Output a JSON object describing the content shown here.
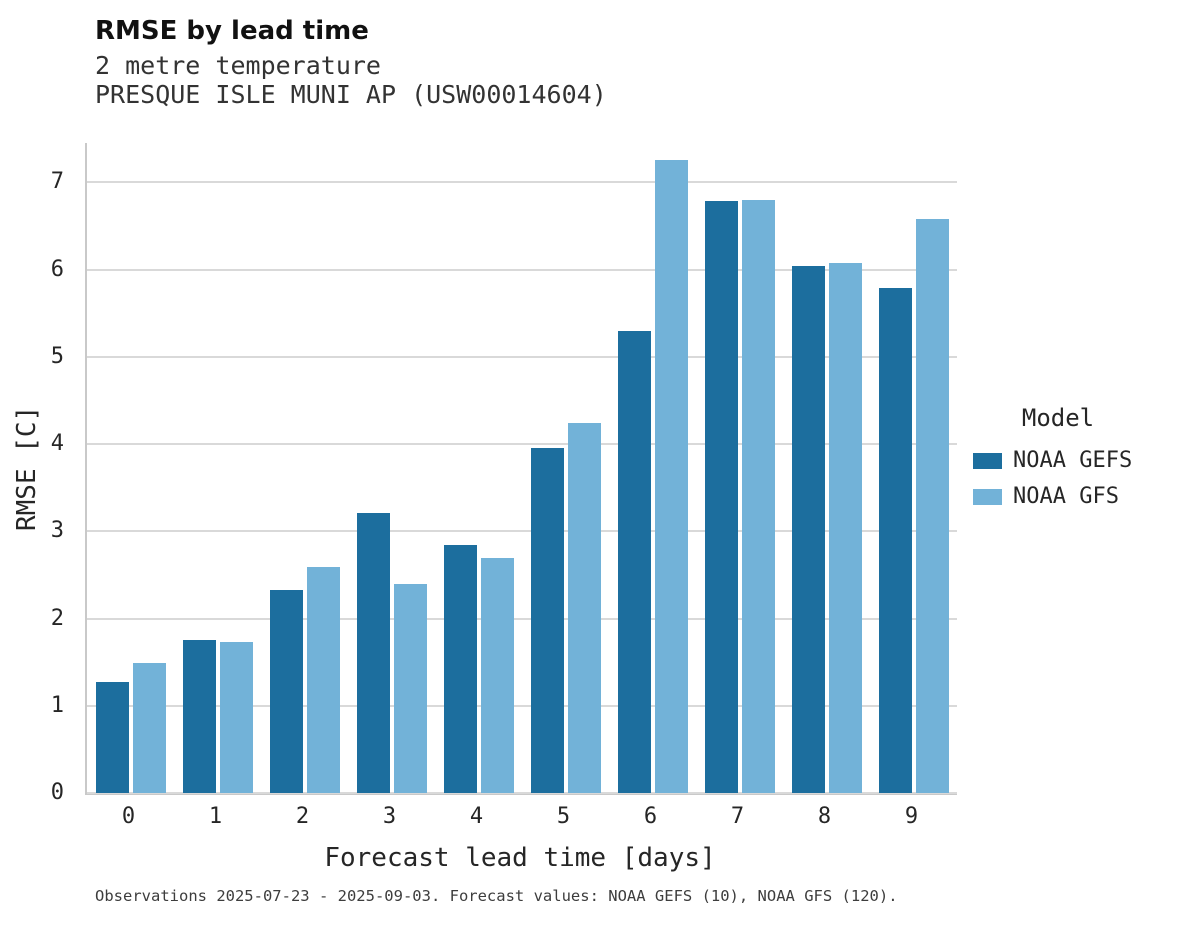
{
  "header": {
    "title": "RMSE by lead time",
    "subtitle_variable": "2 metre temperature",
    "subtitle_station": "PRESQUE ISLE MUNI AP (USW00014604)"
  },
  "footer": {
    "caption": "Observations 2025-07-23 - 2025-09-03. Forecast values: NOAA GEFS (10), NOAA GFS (120)."
  },
  "chart_data": {
    "type": "bar",
    "title": "RMSE by lead time",
    "subtitle": [
      "2 metre temperature",
      "PRESQUE ISLE MUNI AP (USW00014604)"
    ],
    "xlabel": "Forecast lead time [days]",
    "ylabel": "RMSE [C]",
    "legend_title": "Model",
    "legend_position": "right",
    "grid": true,
    "categories": [
      0,
      1,
      2,
      3,
      4,
      5,
      6,
      7,
      8,
      9
    ],
    "yticks": [
      0,
      1,
      2,
      3,
      4,
      5,
      6,
      7
    ],
    "ylim": [
      0,
      7.45
    ],
    "series": [
      {
        "name": "NOAA GEFS",
        "color": "#1c6e9e",
        "values": [
          1.27,
          1.75,
          2.33,
          3.21,
          2.84,
          3.95,
          5.3,
          6.79,
          6.04,
          5.79
        ]
      },
      {
        "name": "NOAA GFS",
        "color": "#72b2d8",
        "values": [
          1.49,
          1.73,
          2.59,
          2.4,
          2.69,
          4.24,
          7.25,
          6.8,
          6.07,
          6.58
        ]
      }
    ]
  }
}
